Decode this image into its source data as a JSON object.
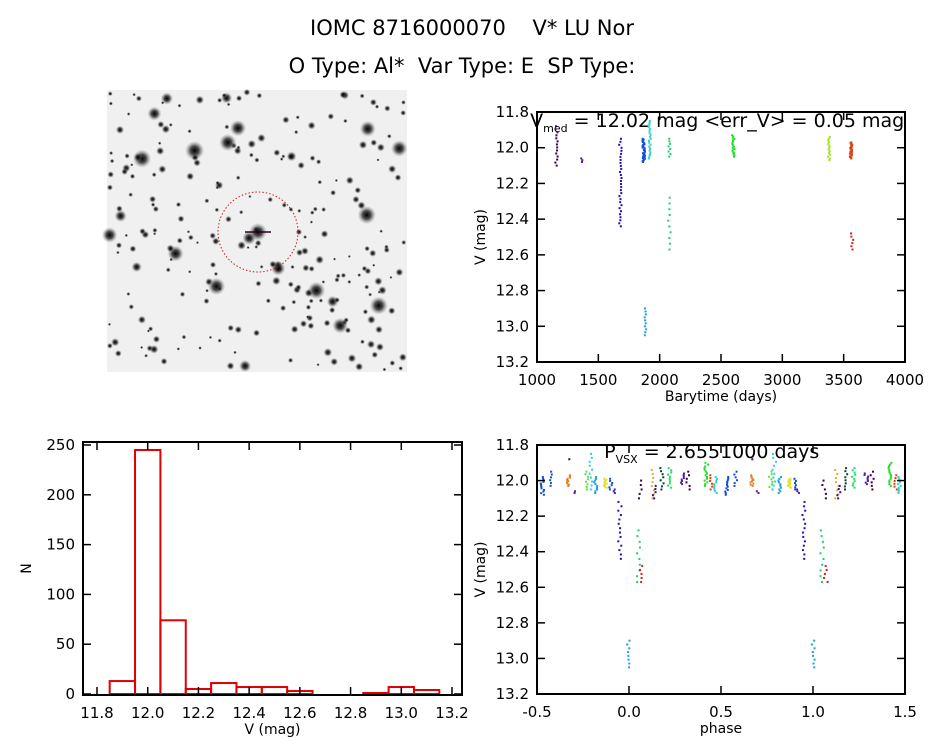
{
  "header": {
    "title": "IOMC 8716000070    V* LU Nor",
    "subtitle": "O Type: Al*  Var Type: E  SP Type:"
  },
  "chart_data": [
    {
      "type": "scatter",
      "name": "light-curve",
      "title_main": "V",
      "title_sub": "med",
      "title_rest": " = 12.02 mag <err_V> = 0.05 mag",
      "xlabel": "Barytime (days)",
      "ylabel": "V (mag)",
      "xlim": [
        1000,
        4000
      ],
      "ylim": [
        13.2,
        11.8
      ],
      "xticks": [
        "1000",
        "1500",
        "2000",
        "2500",
        "3000",
        "3500",
        "4000"
      ],
      "yticks": [
        "11.8",
        "12.0",
        "12.2",
        "12.4",
        "12.6",
        "12.8",
        "13.0",
        "13.2"
      ],
      "clusters": [
        {
          "x": 1160,
          "ymin": 11.88,
          "ymax": 12.1,
          "n": 14,
          "color": "#3a0050"
        },
        {
          "x": 1370,
          "ymin": 12.06,
          "ymax": 12.08,
          "n": 3,
          "color": "#5a1aa0"
        },
        {
          "x": 1680,
          "ymin": 11.95,
          "ymax": 12.44,
          "n": 30,
          "color": "#2a10b0"
        },
        {
          "x": 1870,
          "ymin": 11.95,
          "ymax": 12.08,
          "n": 30,
          "color": "#1050d0"
        },
        {
          "x": 1880,
          "ymin": 12.9,
          "ymax": 13.05,
          "n": 10,
          "color": "#20a0e0"
        },
        {
          "x": 1920,
          "ymin": 11.85,
          "ymax": 12.06,
          "n": 20,
          "color": "#30d0d0"
        },
        {
          "x": 2080,
          "ymin": 11.95,
          "ymax": 12.05,
          "n": 8,
          "color": "#20d070"
        },
        {
          "x": 2080,
          "ymin": 12.28,
          "ymax": 12.57,
          "n": 10,
          "color": "#20d070"
        },
        {
          "x": 2600,
          "ymin": 11.93,
          "ymax": 12.05,
          "n": 18,
          "color": "#20e020"
        },
        {
          "x": 3380,
          "ymin": 11.94,
          "ymax": 12.07,
          "n": 14,
          "color": "#a0e020"
        },
        {
          "x": 3560,
          "ymin": 11.97,
          "ymax": 12.06,
          "n": 25,
          "color": "#e04010"
        },
        {
          "x": 3570,
          "ymin": 12.48,
          "ymax": 12.57,
          "n": 6,
          "color": "#d02020"
        }
      ]
    },
    {
      "type": "scatter",
      "name": "phase-curve",
      "title_main": "P",
      "title_sub": "VSX",
      "title_rest": " = 2.6551000 days",
      "xlabel": "phase",
      "ylabel": "V (mag)",
      "xlim": [
        -0.5,
        1.5
      ],
      "ylim": [
        13.2,
        11.8
      ],
      "xticks": [
        "-0.5",
        "0.0",
        "0.5",
        "1.0",
        "1.5"
      ],
      "yticks": [
        "11.8",
        "12.0",
        "12.2",
        "12.4",
        "12.6",
        "12.8",
        "13.0",
        "13.2"
      ],
      "clusters": [
        {
          "x": 0.0,
          "ymin": 12.9,
          "ymax": 13.05,
          "n": 8,
          "color": "#20a0e0"
        },
        {
          "x": 0.95,
          "ymin": 12.12,
          "ymax": 12.44,
          "n": 14,
          "color": "#2a10b0"
        },
        {
          "x": 0.05,
          "ymin": 12.28,
          "ymax": 12.57,
          "n": 10,
          "color": "#20d070"
        },
        {
          "x": 0.07,
          "ymin": 12.48,
          "ymax": 12.57,
          "n": 5,
          "color": "#d02020"
        },
        {
          "x": 0.06,
          "ymin": 12.0,
          "ymax": 12.1,
          "n": 5,
          "color": "#3a0050"
        },
        {
          "x": 0.13,
          "ymin": 11.94,
          "ymax": 12.1,
          "n": 8,
          "color": "#e0b020"
        },
        {
          "x": 0.14,
          "ymin": 12.03,
          "ymax": 12.1,
          "n": 5,
          "color": "#2a10b0"
        },
        {
          "x": 0.18,
          "ymin": 11.93,
          "ymax": 12.05,
          "n": 8,
          "color": "#104030"
        },
        {
          "x": 0.22,
          "ymin": 11.93,
          "ymax": 12.04,
          "n": 10,
          "color": "#20e060"
        },
        {
          "x": 0.29,
          "ymin": 11.96,
          "ymax": 12.02,
          "n": 8,
          "color": "#5020b0"
        },
        {
          "x": 0.32,
          "ymin": 11.95,
          "ymax": 12.05,
          "n": 6,
          "color": "#3a0050"
        },
        {
          "x": 0.42,
          "ymin": 11.9,
          "ymax": 12.03,
          "n": 14,
          "color": "#20e020"
        },
        {
          "x": 0.45,
          "ymin": 11.97,
          "ymax": 12.05,
          "n": 6,
          "color": "#e04010"
        },
        {
          "x": 0.47,
          "ymin": 11.98,
          "ymax": 12.07,
          "n": 10,
          "color": "#30d0d0"
        },
        {
          "x": 0.53,
          "ymin": 11.98,
          "ymax": 12.08,
          "n": 12,
          "color": "#1050d0"
        },
        {
          "x": 0.58,
          "ymin": 11.95,
          "ymax": 12.03,
          "n": 6,
          "color": "#1050d0"
        },
        {
          "x": 0.67,
          "ymin": 11.97,
          "ymax": 12.03,
          "n": 10,
          "color": "#e08020"
        },
        {
          "x": 0.68,
          "ymin": 11.88,
          "ymax": 11.89,
          "n": 1,
          "color": "#3a0050"
        },
        {
          "x": 0.7,
          "ymin": 12.06,
          "ymax": 12.07,
          "n": 2,
          "color": "#5a1aa0"
        },
        {
          "x": 0.77,
          "ymin": 11.95,
          "ymax": 12.05,
          "n": 8,
          "color": "#60e040"
        },
        {
          "x": 0.79,
          "ymin": 11.85,
          "ymax": 12.05,
          "n": 10,
          "color": "#30d0d0"
        },
        {
          "x": 0.82,
          "ymin": 11.98,
          "ymax": 12.07,
          "n": 10,
          "color": "#20a0e0"
        },
        {
          "x": 0.87,
          "ymin": 11.99,
          "ymax": 12.04,
          "n": 10,
          "color": "#e0e020"
        },
        {
          "x": 0.9,
          "ymin": 11.99,
          "ymax": 12.05,
          "n": 6,
          "color": "#1050d0"
        },
        {
          "x": 0.92,
          "ymin": 12.05,
          "ymax": 12.07,
          "n": 3,
          "color": "#5020b0"
        }
      ]
    },
    {
      "type": "bar",
      "name": "histogram",
      "xlabel": "V (mag)",
      "ylabel": "N",
      "xlim": [
        11.75,
        13.25
      ],
      "ylim": [
        0,
        250
      ],
      "xticks": [
        "11.8",
        "12.0",
        "12.2",
        "12.4",
        "12.6",
        "12.8",
        "13.0",
        "13.2"
      ],
      "yticks": [
        "0",
        "50",
        "100",
        "150",
        "200",
        "250"
      ],
      "bar_color": "#e00000",
      "bin_edges": [
        11.85,
        11.95,
        12.05,
        12.15,
        12.25,
        12.35,
        12.45,
        12.55,
        12.65,
        12.75,
        12.85,
        12.95,
        13.05,
        13.15
      ],
      "values": [
        13,
        245,
        74,
        5,
        11,
        7,
        7,
        3,
        0,
        0,
        1,
        7,
        4
      ]
    }
  ]
}
